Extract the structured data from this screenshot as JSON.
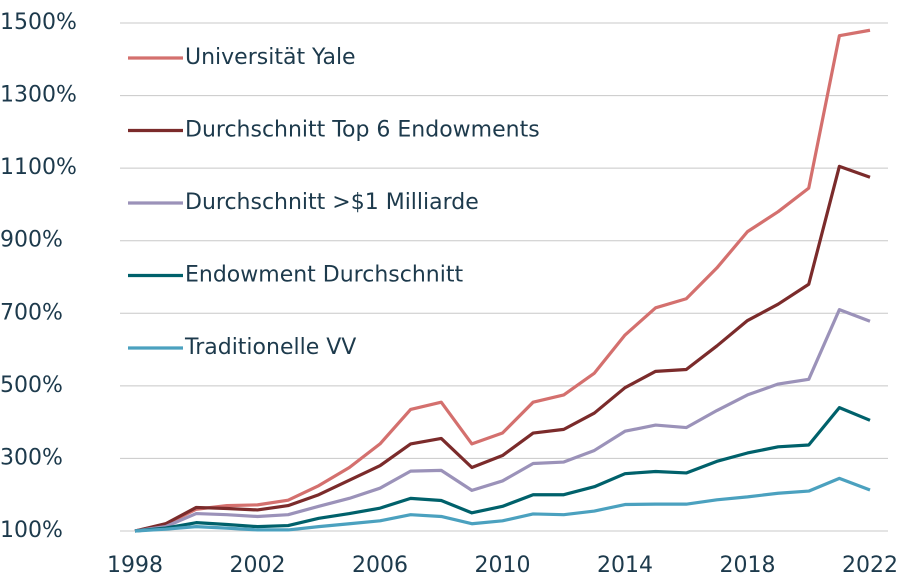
{
  "chart_data": {
    "type": "line",
    "x": [
      1998,
      1999,
      2000,
      2001,
      2002,
      2003,
      2004,
      2005,
      2006,
      2007,
      2008,
      2009,
      2010,
      2011,
      2012,
      2013,
      2014,
      2015,
      2016,
      2017,
      2018,
      2019,
      2020,
      2021,
      2022
    ],
    "series": [
      {
        "name": "Universität Yale",
        "color": "#d4706e",
        "values": [
          100,
          118,
          160,
          170,
          172,
          185,
          225,
          275,
          340,
          435,
          455,
          340,
          370,
          455,
          475,
          535,
          640,
          715,
          740,
          825,
          925,
          980,
          1045,
          1465,
          1480
        ]
      },
      {
        "name": "Durchschnitt Top 6 Endowments",
        "color": "#7b2b2b",
        "values": [
          100,
          120,
          165,
          162,
          158,
          170,
          200,
          240,
          280,
          340,
          355,
          275,
          308,
          370,
          380,
          425,
          495,
          540,
          545,
          610,
          680,
          725,
          780,
          1105,
          1075
        ]
      },
      {
        "name": "Durchschnitt >$1 Milliarde",
        "color": "#9b92b9",
        "values": [
          100,
          112,
          148,
          145,
          140,
          145,
          168,
          190,
          218,
          265,
          267,
          212,
          238,
          286,
          290,
          322,
          375,
          392,
          385,
          432,
          475,
          505,
          518,
          710,
          678
        ]
      },
      {
        "name": "Endowment Durchschnitt",
        "color": "#00616b",
        "values": [
          100,
          108,
          123,
          118,
          112,
          115,
          135,
          148,
          163,
          190,
          184,
          150,
          168,
          200,
          200,
          222,
          258,
          264,
          260,
          292,
          315,
          332,
          337,
          440,
          405
        ]
      },
      {
        "name": "Traditionelle VV",
        "color": "#4ba1bf",
        "values": [
          100,
          105,
          112,
          108,
          103,
          103,
          112,
          120,
          128,
          145,
          140,
          120,
          128,
          147,
          145,
          155,
          173,
          174,
          174,
          186,
          194,
          204,
          210,
          245,
          213
        ]
      }
    ],
    "xlim": [
      1998,
      2022
    ],
    "xticks": [
      1998,
      2002,
      2006,
      2010,
      2014,
      2018,
      2022
    ],
    "ylim": [
      100,
      1500
    ],
    "yticks": [
      {
        "value": 100,
        "label": "100%"
      },
      {
        "value": 300,
        "label": "300%"
      },
      {
        "value": 500,
        "label": "500%"
      },
      {
        "value": 700,
        "label": "700%"
      },
      {
        "value": 900,
        "label": "900%"
      },
      {
        "value": 1100,
        "label": "1100%"
      },
      {
        "value": 1300,
        "label": "1300%"
      },
      {
        "value": 1500,
        "label": "1500%"
      }
    ],
    "grid": true,
    "legend": "upper left"
  }
}
